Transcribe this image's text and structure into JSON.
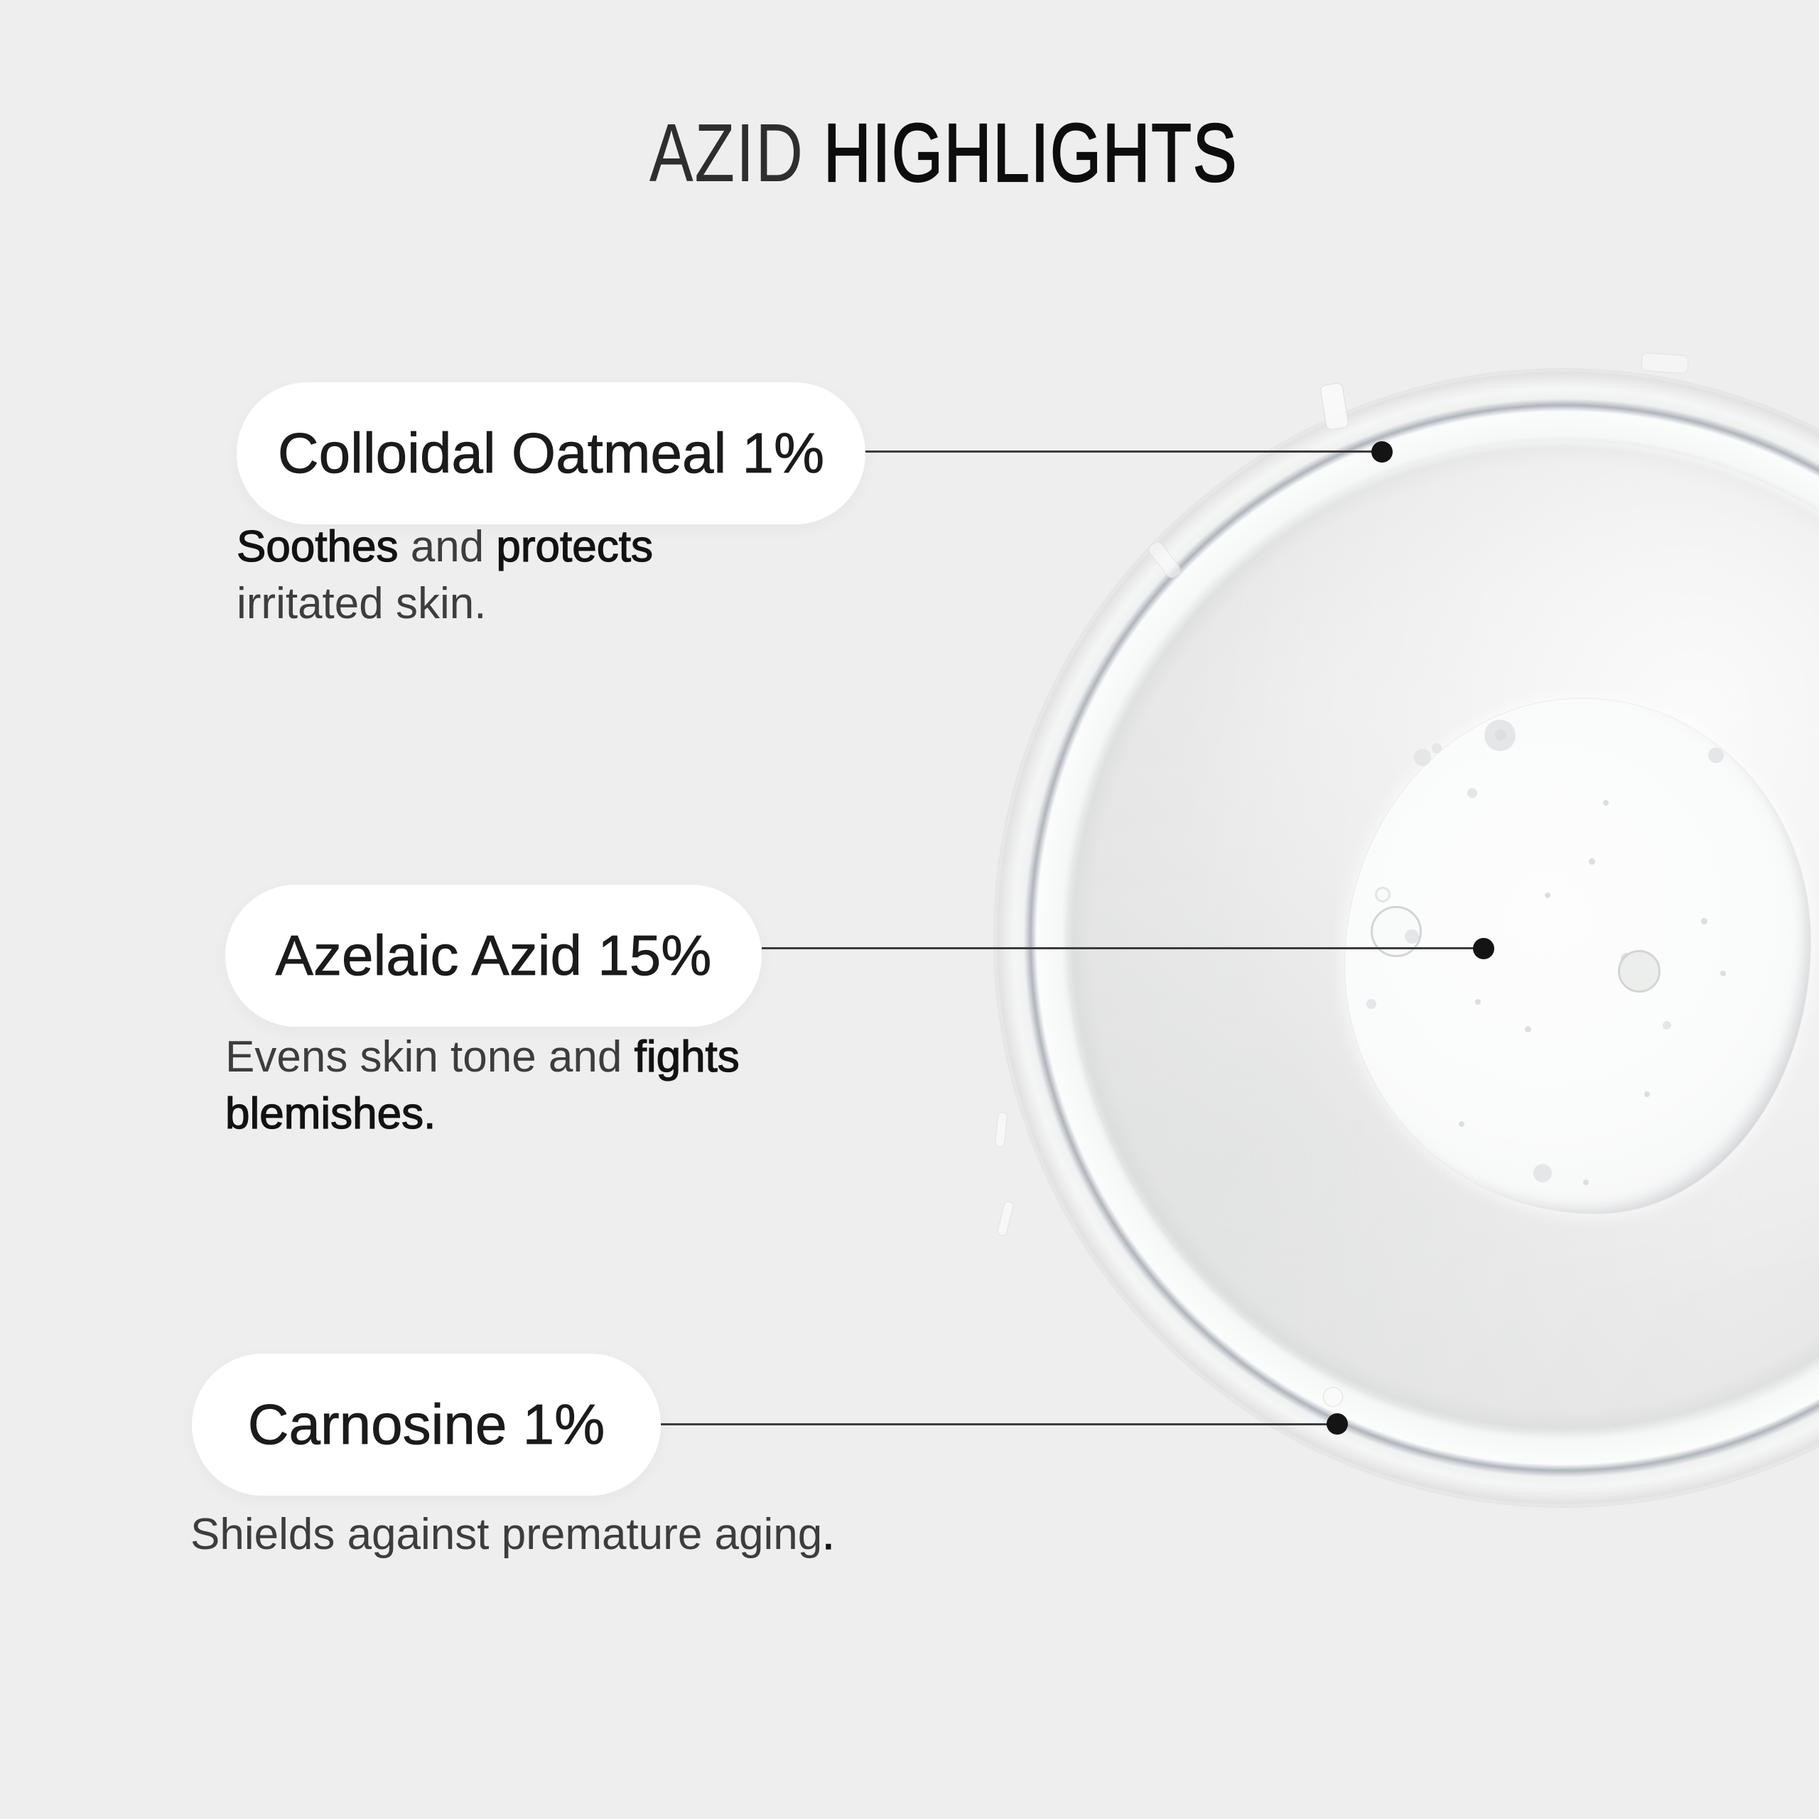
{
  "title": {
    "thin": "AZID",
    "strong": "HIGHLIGHTS"
  },
  "colors": {
    "background": "#eeeeee",
    "pill_background": "#ffffff",
    "title_text": "#0d0d0d",
    "light_text": "#3d3d3d",
    "strong_text": "#121212",
    "connector_line": "#3c3c3c",
    "marker_dot": "#141414",
    "dish_rim_line": "#b0b5bc",
    "cream_swatch": "#fdfdfd"
  },
  "image": {
    "name": "petri-dish-with-cream-swatch"
  },
  "callouts": [
    {
      "label": "Colloidal Oatmeal 1%",
      "description": [
        [
          {
            "text": "Soothes",
            "strong": true
          },
          {
            "text": " and ",
            "strong": false
          },
          {
            "text": "protects",
            "strong": true
          }
        ],
        [
          {
            "text": "irritated skin.",
            "strong": false
          }
        ]
      ]
    },
    {
      "label": "Azelaic Azid 15%",
      "description": [
        [
          {
            "text": "Evens skin tone and ",
            "strong": false
          },
          {
            "text": "fights",
            "strong": true
          }
        ],
        [
          {
            "text": "blemishes.",
            "strong": true
          }
        ]
      ]
    },
    {
      "label": "Carnosine 1%",
      "description": [
        [
          {
            "text": "Shields against premature aging",
            "strong": false
          },
          {
            "text": ".",
            "strong": true
          }
        ]
      ]
    }
  ]
}
